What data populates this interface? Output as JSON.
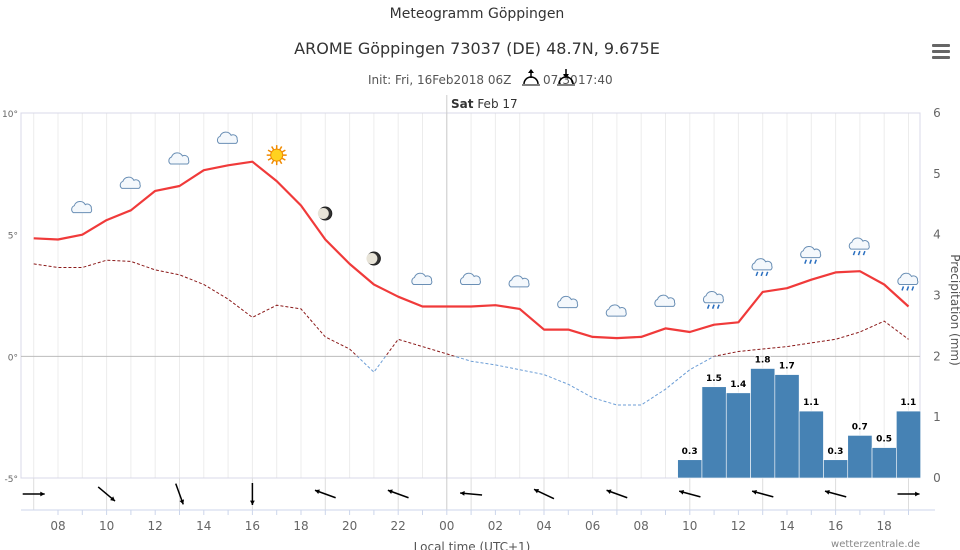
{
  "title": "Meteogramm Göppingen",
  "subtitle": "AROME Göppingen 73037 (DE) 48.7N, 9.675E",
  "init_text": "Init: Fri, 16Feb2018 06Z",
  "sunrise": "07:30",
  "sunset": "17:40",
  "day_label_bold": "Sat",
  "day_label": "Feb 17",
  "credit": "wetterzentrale.de",
  "menu_icon": "hamburger-menu-icon",
  "colors": {
    "temperature": "#f03a3a",
    "dewpoint_above_zero": "#8b1a1a",
    "dewpoint_below_zero": "#6d9ed6",
    "precipitation": "#4682b4"
  },
  "chart_data": {
    "type": "line+bar",
    "xlabel": "Local time (UTC+1)",
    "x_tick_labels": [
      "08",
      "10",
      "12",
      "14",
      "16",
      "18",
      "20",
      "22",
      "00",
      "02",
      "04",
      "06",
      "08",
      "10",
      "12",
      "14",
      "16",
      "18"
    ],
    "x_hours": [
      7,
      8,
      9,
      10,
      11,
      12,
      13,
      14,
      15,
      16,
      17,
      18,
      19,
      20,
      21,
      22,
      23,
      24,
      25,
      26,
      27,
      28,
      29,
      30,
      31,
      32,
      33,
      34,
      35,
      36,
      37,
      38,
      39,
      40,
      41,
      42,
      43
    ],
    "left_axis": {
      "ylim": [
        -5,
        10
      ],
      "tick_labels": [
        "10°",
        "5°",
        "0°",
        "-5°"
      ],
      "ticks": [
        10,
        5,
        0,
        -5
      ]
    },
    "right_axis": {
      "ylabel": "Precipitation (mm)",
      "ylim": [
        0,
        6
      ],
      "ticks": [
        "6",
        "5",
        "4",
        "3",
        "2",
        "1",
        "0"
      ]
    },
    "series": [
      {
        "kind": "temperature",
        "values": [
          4.85,
          4.8,
          5.0,
          5.6,
          6.0,
          6.8,
          7.0,
          7.65,
          7.85,
          8.0,
          7.2,
          6.2,
          4.8,
          3.8,
          2.95,
          2.45,
          2.05,
          2.05,
          2.05,
          2.1,
          1.95,
          1.1,
          1.1,
          0.8,
          0.75,
          0.8,
          1.15,
          1.0,
          1.3,
          1.4,
          2.65,
          2.8,
          3.15,
          3.45,
          3.5,
          2.95,
          2.05
        ]
      },
      {
        "kind": "dewpoint",
        "values": [
          3.8,
          3.65,
          3.65,
          3.95,
          3.9,
          3.55,
          3.35,
          2.95,
          2.35,
          1.6,
          2.1,
          1.95,
          0.8,
          0.3,
          -0.65,
          0.7,
          0.4,
          0.1,
          -0.2,
          -0.35,
          -0.55,
          -0.75,
          -1.15,
          -1.7,
          -2.0,
          -2.0,
          -1.35,
          -0.55,
          0,
          0.2,
          0.3,
          0.4,
          0.55,
          0.7,
          1.0,
          1.45,
          0.7
        ]
      }
    ],
    "precipitation": {
      "hours": [
        34,
        35,
        36,
        37,
        38,
        39,
        40,
        41,
        42,
        43
      ],
      "values": [
        0.3,
        1.5,
        1.4,
        1.8,
        1.7,
        1.1,
        0.3,
        0.7,
        0.5,
        1.1
      ],
      "labels": [
        "0.3",
        "1.5",
        "1.4",
        "1.8",
        "1.7",
        "1.1",
        "0.3",
        "0.7",
        "0.5",
        "1.1"
      ]
    },
    "weather_symbols": [
      {
        "hour": 9,
        "icon": "cloud"
      },
      {
        "hour": 11,
        "icon": "cloud"
      },
      {
        "hour": 13,
        "icon": "cloud"
      },
      {
        "hour": 15,
        "icon": "cloud"
      },
      {
        "hour": 17,
        "icon": "sun"
      },
      {
        "hour": 19,
        "icon": "moon"
      },
      {
        "hour": 21,
        "icon": "moon"
      },
      {
        "hour": 23,
        "icon": "cloud"
      },
      {
        "hour": 25,
        "icon": "cloud"
      },
      {
        "hour": 27,
        "icon": "cloud"
      },
      {
        "hour": 29,
        "icon": "cloud"
      },
      {
        "hour": 31,
        "icon": "cloud"
      },
      {
        "hour": 33,
        "icon": "cloud"
      },
      {
        "hour": 35,
        "icon": "rain"
      },
      {
        "hour": 37,
        "icon": "rain"
      },
      {
        "hour": 39,
        "icon": "rain"
      },
      {
        "hour": 41,
        "icon": "rain"
      },
      {
        "hour": 43,
        "icon": "rain"
      }
    ],
    "wind_from_deg": [
      {
        "hour": 7,
        "deg": 270
      },
      {
        "hour": 10,
        "deg": 310
      },
      {
        "hour": 13,
        "deg": 340
      },
      {
        "hour": 16,
        "deg": 0
      },
      {
        "hour": 19,
        "deg": 110
      },
      {
        "hour": 22,
        "deg": 110
      },
      {
        "hour": 25,
        "deg": 95
      },
      {
        "hour": 28,
        "deg": 115
      },
      {
        "hour": 31,
        "deg": 110
      },
      {
        "hour": 34,
        "deg": 105
      },
      {
        "hour": 37,
        "deg": 105
      },
      {
        "hour": 40,
        "deg": 105
      },
      {
        "hour": 43,
        "deg": 270
      }
    ],
    "grid": "vertical hourly"
  }
}
